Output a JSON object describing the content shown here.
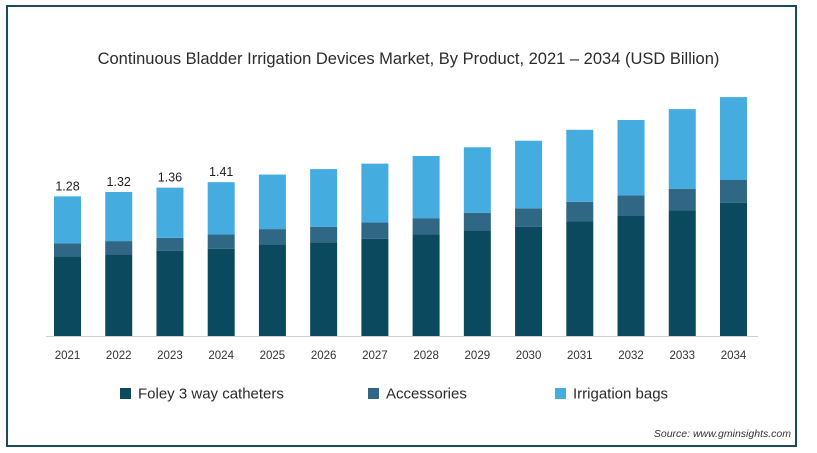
{
  "chart_data": {
    "type": "bar",
    "stacked": true,
    "title": "Continuous Bladder Irrigation Devices Market, By Product, 2021 – 2034 (USD Billion)",
    "xlabel": "",
    "ylabel": "",
    "categories": [
      "2021",
      "2022",
      "2023",
      "2024",
      "2025",
      "2026",
      "2027",
      "2028",
      "2029",
      "2030",
      "2031",
      "2032",
      "2033",
      "2034"
    ],
    "series": [
      {
        "name": "Foley 3 way catheters",
        "color": "#0b4a5e",
        "values": [
          0.73,
          0.75,
          0.78,
          0.8,
          0.84,
          0.86,
          0.89,
          0.93,
          0.97,
          1.0,
          1.05,
          1.1,
          1.15,
          1.22
        ]
      },
      {
        "name": "Accessories",
        "color": "#2f6785",
        "values": [
          0.12,
          0.12,
          0.12,
          0.13,
          0.14,
          0.14,
          0.15,
          0.15,
          0.16,
          0.17,
          0.18,
          0.19,
          0.2,
          0.21
        ]
      },
      {
        "name": "Irrigation bags",
        "color": "#45ace0",
        "values": [
          0.43,
          0.45,
          0.46,
          0.48,
          0.5,
          0.53,
          0.54,
          0.57,
          0.6,
          0.62,
          0.66,
          0.69,
          0.73,
          0.76
        ]
      }
    ],
    "totals_labels": [
      "1.28",
      "1.32",
      "1.36",
      "1.41"
    ],
    "ylim": [
      0,
      2.2
    ],
    "grid": false,
    "legend_position": "bottom"
  },
  "source": "Source: www.gminsights.com"
}
